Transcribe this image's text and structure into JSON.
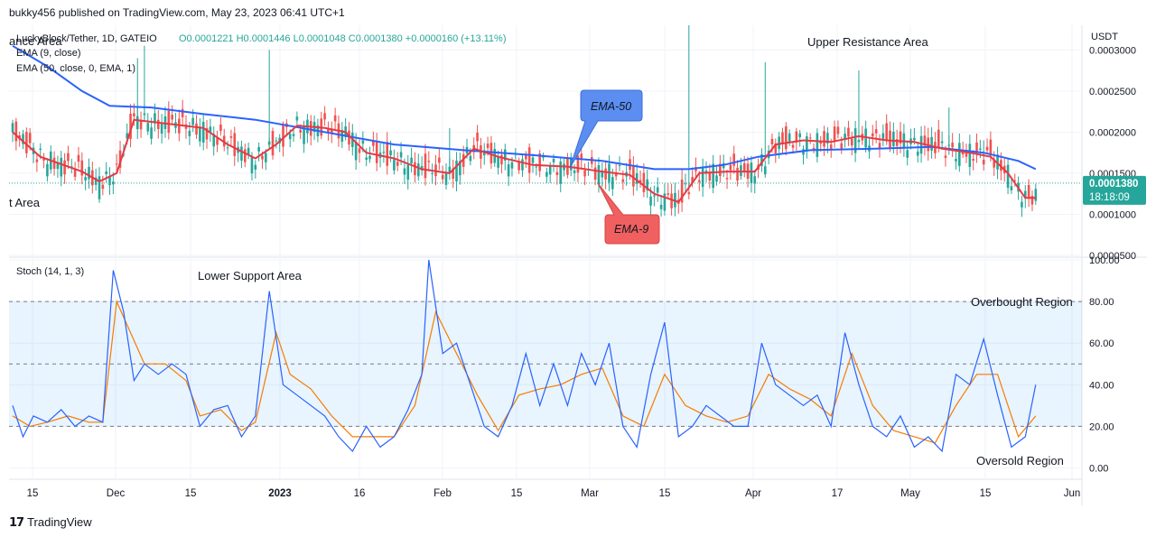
{
  "header": {
    "published": "bukky456 published on TradingView.com, May 23, 2023 06:41 UTC+1"
  },
  "footer": {
    "brand": "TradingView"
  },
  "legend": {
    "symbol": "LuckyBlock/Tether, 1D, GATEIO",
    "ohlc": "O0.0001221  H0.0001446  L0.0001048  C0.0001380  +0.0000160 (+13.11%)",
    "ema9": "EMA (9, close)",
    "ema50": "EMA (50, close, 0, EMA, 1)",
    "stoch": "Stoch (14, 1, 3)"
  },
  "annotations": {
    "resistance_left": "ance Area",
    "support_left": "t Area",
    "upper_resistance": "Upper Resistance Area",
    "lower_support": "Lower Support Area",
    "ema50_callout": "EMA-50",
    "ema9_callout": "EMA-9",
    "overbought": "Overbought Region",
    "oversold": "Oversold Region"
  },
  "price_axis": {
    "currency": "USDT",
    "current_price": "0.0001380",
    "countdown": "18:18:09"
  },
  "colors": {
    "up": "#26a69a",
    "down": "#ef5350",
    "ema9": "#e53945",
    "ema50": "#2962ff",
    "stoch_k": "#2962ff",
    "stoch_d": "#f57c00",
    "band": "#2196f3",
    "callout_blue": "#5b8ef0",
    "callout_red": "#f06060"
  },
  "chart_data": [
    {
      "type": "candlestick",
      "title": "LuckyBlock/Tether, 1D, GATEIO",
      "x_ticks": [
        "15",
        "Dec",
        "15",
        "2023",
        "16",
        "Feb",
        "15",
        "Mar",
        "15",
        "Apr",
        "17",
        "May",
        "15",
        "Jun"
      ],
      "y_ticks": [
        "0.0003000",
        "0.0002500",
        "0.0002000",
        "0.0001500",
        "0.0001000",
        "0.0000500"
      ],
      "ylim": [
        5e-05,
        0.00033
      ],
      "grid": true,
      "series": [
        {
          "name": "EMA (9, close)",
          "points": [
            {
              "d": 0,
              "v": 0.0002
            },
            {
              "d": 8,
              "v": 0.00017
            },
            {
              "d": 20,
              "v": 0.000152
            },
            {
              "d": 25,
              "v": 0.00014
            },
            {
              "d": 30,
              "v": 0.00015
            },
            {
              "d": 35,
              "v": 0.000215
            },
            {
              "d": 45,
              "v": 0.00021
            },
            {
              "d": 55,
              "v": 0.000205
            },
            {
              "d": 62,
              "v": 0.000185
            },
            {
              "d": 70,
              "v": 0.000168
            },
            {
              "d": 76,
              "v": 0.000185
            },
            {
              "d": 82,
              "v": 0.000208
            },
            {
              "d": 90,
              "v": 0.000205
            },
            {
              "d": 96,
              "v": 0.0002
            },
            {
              "d": 102,
              "v": 0.000175
            },
            {
              "d": 110,
              "v": 0.000168
            },
            {
              "d": 118,
              "v": 0.000155
            },
            {
              "d": 126,
              "v": 0.00015
            },
            {
              "d": 133,
              "v": 0.00018
            },
            {
              "d": 140,
              "v": 0.00017
            },
            {
              "d": 150,
              "v": 0.00016
            },
            {
              "d": 160,
              "v": 0.000158
            },
            {
              "d": 170,
              "v": 0.000152
            },
            {
              "d": 178,
              "v": 0.000148
            },
            {
              "d": 185,
              "v": 0.000125
            },
            {
              "d": 192,
              "v": 0.000115
            },
            {
              "d": 198,
              "v": 0.00015
            },
            {
              "d": 206,
              "v": 0.000152
            },
            {
              "d": 214,
              "v": 0.000152
            },
            {
              "d": 220,
              "v": 0.000185
            },
            {
              "d": 228,
              "v": 0.00019
            },
            {
              "d": 236,
              "v": 0.000188
            },
            {
              "d": 244,
              "v": 0.000195
            },
            {
              "d": 252,
              "v": 0.00019
            },
            {
              "d": 260,
              "v": 0.000188
            },
            {
              "d": 268,
              "v": 0.00018
            },
            {
              "d": 276,
              "v": 0.000175
            },
            {
              "d": 282,
              "v": 0.00017
            },
            {
              "d": 287,
              "v": 0.00015
            },
            {
              "d": 292,
              "v": 0.00012
            },
            {
              "d": 295,
              "v": 0.00012
            }
          ]
        },
        {
          "name": "EMA (50, close, 0, EMA, 1)",
          "points": [
            {
              "d": 0,
              "v": 0.000305
            },
            {
              "d": 10,
              "v": 0.00028
            },
            {
              "d": 20,
              "v": 0.00025
            },
            {
              "d": 28,
              "v": 0.000232
            },
            {
              "d": 40,
              "v": 0.00023
            },
            {
              "d": 55,
              "v": 0.000222
            },
            {
              "d": 70,
              "v": 0.000215
            },
            {
              "d": 90,
              "v": 0.0002
            },
            {
              "d": 110,
              "v": 0.000185
            },
            {
              "d": 130,
              "v": 0.000178
            },
            {
              "d": 150,
              "v": 0.000172
            },
            {
              "d": 170,
              "v": 0.000165
            },
            {
              "d": 185,
              "v": 0.000155
            },
            {
              "d": 195,
              "v": 0.000155
            },
            {
              "d": 205,
              "v": 0.00016
            },
            {
              "d": 215,
              "v": 0.00017
            },
            {
              "d": 230,
              "v": 0.000178
            },
            {
              "d": 250,
              "v": 0.00018
            },
            {
              "d": 265,
              "v": 0.000182
            },
            {
              "d": 280,
              "v": 0.000175
            },
            {
              "d": 290,
              "v": 0.000165
            },
            {
              "d": 295,
              "v": 0.000155
            }
          ]
        }
      ]
    },
    {
      "type": "line",
      "title": "Stoch (14, 1, 3)",
      "y_ticks": [
        "100.00",
        "80.00",
        "60.00",
        "40.00",
        "20.00",
        "0.00"
      ],
      "ylim": [
        -5,
        100
      ],
      "bands": [
        80,
        50,
        20
      ],
      "series": [
        {
          "name": "%K",
          "points": [
            {
              "d": 0,
              "v": 30
            },
            {
              "d": 3,
              "v": 15
            },
            {
              "d": 6,
              "v": 25
            },
            {
              "d": 10,
              "v": 22
            },
            {
              "d": 14,
              "v": 28
            },
            {
              "d": 18,
              "v": 20
            },
            {
              "d": 22,
              "v": 25
            },
            {
              "d": 26,
              "v": 22
            },
            {
              "d": 29,
              "v": 95
            },
            {
              "d": 32,
              "v": 75
            },
            {
              "d": 35,
              "v": 42
            },
            {
              "d": 38,
              "v": 50
            },
            {
              "d": 42,
              "v": 45
            },
            {
              "d": 46,
              "v": 50
            },
            {
              "d": 50,
              "v": 45
            },
            {
              "d": 54,
              "v": 20
            },
            {
              "d": 58,
              "v": 28
            },
            {
              "d": 62,
              "v": 30
            },
            {
              "d": 66,
              "v": 15
            },
            {
              "d": 70,
              "v": 25
            },
            {
              "d": 74,
              "v": 85
            },
            {
              "d": 78,
              "v": 40
            },
            {
              "d": 82,
              "v": 35
            },
            {
              "d": 86,
              "v": 30
            },
            {
              "d": 90,
              "v": 25
            },
            {
              "d": 94,
              "v": 15
            },
            {
              "d": 98,
              "v": 8
            },
            {
              "d": 102,
              "v": 20
            },
            {
              "d": 106,
              "v": 10
            },
            {
              "d": 110,
              "v": 15
            },
            {
              "d": 114,
              "v": 28
            },
            {
              "d": 118,
              "v": 45
            },
            {
              "d": 120,
              "v": 100
            },
            {
              "d": 124,
              "v": 55
            },
            {
              "d": 128,
              "v": 60
            },
            {
              "d": 132,
              "v": 40
            },
            {
              "d": 136,
              "v": 20
            },
            {
              "d": 140,
              "v": 15
            },
            {
              "d": 144,
              "v": 30
            },
            {
              "d": 148,
              "v": 55
            },
            {
              "d": 152,
              "v": 30
            },
            {
              "d": 156,
              "v": 50
            },
            {
              "d": 160,
              "v": 30
            },
            {
              "d": 164,
              "v": 55
            },
            {
              "d": 168,
              "v": 40
            },
            {
              "d": 172,
              "v": 60
            },
            {
              "d": 176,
              "v": 20
            },
            {
              "d": 180,
              "v": 10
            },
            {
              "d": 184,
              "v": 45
            },
            {
              "d": 188,
              "v": 70
            },
            {
              "d": 192,
              "v": 15
            },
            {
              "d": 196,
              "v": 20
            },
            {
              "d": 200,
              "v": 30
            },
            {
              "d": 204,
              "v": 25
            },
            {
              "d": 208,
              "v": 20
            },
            {
              "d": 212,
              "v": 20
            },
            {
              "d": 216,
              "v": 60
            },
            {
              "d": 220,
              "v": 40
            },
            {
              "d": 224,
              "v": 35
            },
            {
              "d": 228,
              "v": 30
            },
            {
              "d": 232,
              "v": 35
            },
            {
              "d": 236,
              "v": 20
            },
            {
              "d": 240,
              "v": 65
            },
            {
              "d": 244,
              "v": 40
            },
            {
              "d": 248,
              "v": 20
            },
            {
              "d": 252,
              "v": 15
            },
            {
              "d": 256,
              "v": 25
            },
            {
              "d": 260,
              "v": 10
            },
            {
              "d": 264,
              "v": 15
            },
            {
              "d": 268,
              "v": 8
            },
            {
              "d": 272,
              "v": 45
            },
            {
              "d": 276,
              "v": 40
            },
            {
              "d": 280,
              "v": 62
            },
            {
              "d": 284,
              "v": 35
            },
            {
              "d": 288,
              "v": 10
            },
            {
              "d": 292,
              "v": 15
            },
            {
              "d": 295,
              "v": 40
            }
          ]
        },
        {
          "name": "%D",
          "points": [
            {
              "d": 0,
              "v": 25
            },
            {
              "d": 5,
              "v": 20
            },
            {
              "d": 10,
              "v": 22
            },
            {
              "d": 16,
              "v": 25
            },
            {
              "d": 22,
              "v": 22
            },
            {
              "d": 26,
              "v": 22
            },
            {
              "d": 30,
              "v": 80
            },
            {
              "d": 34,
              "v": 65
            },
            {
              "d": 38,
              "v": 50
            },
            {
              "d": 44,
              "v": 50
            },
            {
              "d": 50,
              "v": 42
            },
            {
              "d": 54,
              "v": 25
            },
            {
              "d": 60,
              "v": 28
            },
            {
              "d": 66,
              "v": 18
            },
            {
              "d": 70,
              "v": 22
            },
            {
              "d": 76,
              "v": 65
            },
            {
              "d": 80,
              "v": 45
            },
            {
              "d": 86,
              "v": 38
            },
            {
              "d": 92,
              "v": 25
            },
            {
              "d": 98,
              "v": 15
            },
            {
              "d": 104,
              "v": 15
            },
            {
              "d": 110,
              "v": 15
            },
            {
              "d": 116,
              "v": 30
            },
            {
              "d": 122,
              "v": 75
            },
            {
              "d": 128,
              "v": 55
            },
            {
              "d": 134,
              "v": 35
            },
            {
              "d": 140,
              "v": 18
            },
            {
              "d": 146,
              "v": 35
            },
            {
              "d": 152,
              "v": 38
            },
            {
              "d": 158,
              "v": 40
            },
            {
              "d": 164,
              "v": 45
            },
            {
              "d": 170,
              "v": 48
            },
            {
              "d": 176,
              "v": 25
            },
            {
              "d": 182,
              "v": 20
            },
            {
              "d": 188,
              "v": 45
            },
            {
              "d": 194,
              "v": 30
            },
            {
              "d": 200,
              "v": 25
            },
            {
              "d": 206,
              "v": 22
            },
            {
              "d": 212,
              "v": 25
            },
            {
              "d": 218,
              "v": 45
            },
            {
              "d": 224,
              "v": 38
            },
            {
              "d": 230,
              "v": 33
            },
            {
              "d": 236,
              "v": 25
            },
            {
              "d": 242,
              "v": 55
            },
            {
              "d": 248,
              "v": 30
            },
            {
              "d": 254,
              "v": 18
            },
            {
              "d": 260,
              "v": 15
            },
            {
              "d": 266,
              "v": 12
            },
            {
              "d": 272,
              "v": 30
            },
            {
              "d": 278,
              "v": 45
            },
            {
              "d": 284,
              "v": 45
            },
            {
              "d": 290,
              "v": 15
            },
            {
              "d": 295,
              "v": 25
            }
          ]
        }
      ]
    }
  ]
}
